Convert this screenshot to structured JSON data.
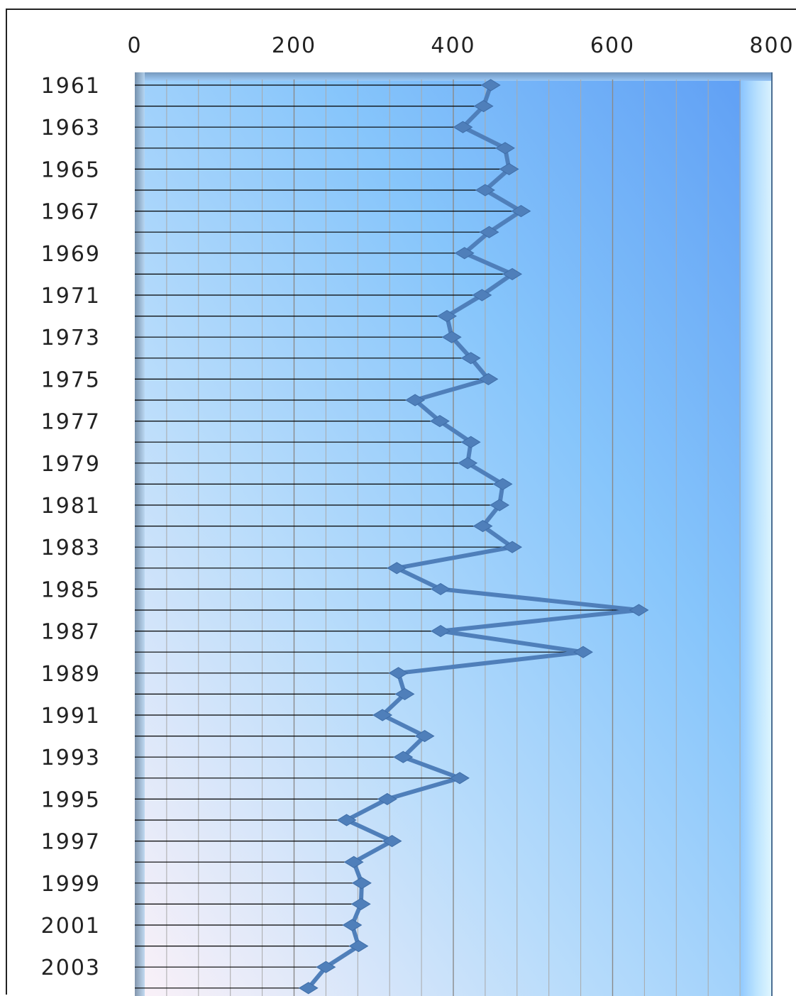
{
  "chart_data": {
    "type": "line",
    "orientation": "horizontal",
    "title": "",
    "xlabel": "",
    "ylabel": "",
    "xlim": [
      0,
      800
    ],
    "x_ticks": [
      "0",
      "200",
      "400",
      "600",
      "800"
    ],
    "y_tick_labels": [
      "1961",
      "1963",
      "1965",
      "1967",
      "1969",
      "1971",
      "1973",
      "1975",
      "1977",
      "1979",
      "1981",
      "1983",
      "1985",
      "1987",
      "1989",
      "1991",
      "1993",
      "1995",
      "1997",
      "1999",
      "2001",
      "2003"
    ],
    "grid": "vertical gridlines every 40",
    "legend": "none",
    "colors": {
      "series_line": "#4f7fba",
      "plot_bg_dark": "#5ea2f5",
      "plot_bg_light": "#f8eefa",
      "grid": "#9a9a9a",
      "drop_lines": "#000000"
    },
    "series": [
      {
        "years": [
          1961,
          1962,
          1963,
          1964,
          1965,
          1966,
          1967,
          1968,
          1969,
          1970,
          1971,
          1972,
          1973,
          1974,
          1975,
          1976,
          1977,
          1978,
          1979,
          1980,
          1981,
          1982,
          1983,
          1984,
          1985,
          1986,
          1987,
          1988,
          1989,
          1990,
          1991,
          1992,
          1993,
          1994,
          1995,
          1996,
          1997,
          1998,
          1999,
          2000,
          2001,
          2002,
          2003,
          2004
        ],
        "values": [
          447,
          438,
          412,
          465,
          470,
          440,
          485,
          445,
          414,
          474,
          436,
          392,
          398,
          422,
          444,
          352,
          383,
          422,
          418,
          462,
          458,
          437,
          474,
          329,
          384,
          633,
          384,
          563,
          331,
          339,
          311,
          364,
          337,
          408,
          317,
          266,
          323,
          275,
          285,
          284,
          273,
          281,
          240,
          218
        ]
      }
    ]
  }
}
